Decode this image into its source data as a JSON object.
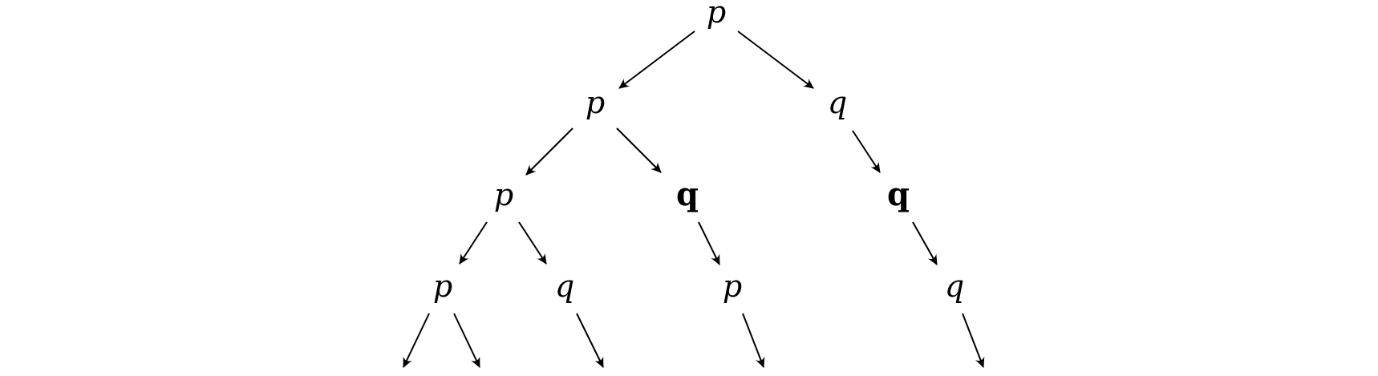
{
  "diagram": {
    "nodes": [
      {
        "id": "n0",
        "label": "p",
        "style": "italic"
      },
      {
        "id": "n1",
        "label": "p",
        "style": "italic"
      },
      {
        "id": "n2",
        "label": "q",
        "style": "italic"
      },
      {
        "id": "n3",
        "label": "p",
        "style": "italic"
      },
      {
        "id": "n4",
        "label": "q",
        "style": "bold"
      },
      {
        "id": "n5",
        "label": "q",
        "style": "bold"
      },
      {
        "id": "n6",
        "label": "p",
        "style": "italic"
      },
      {
        "id": "n7",
        "label": "q",
        "style": "italic"
      },
      {
        "id": "n8",
        "label": "p",
        "style": "italic"
      },
      {
        "id": "n9",
        "label": "q",
        "style": "italic"
      }
    ],
    "edges": [
      {
        "from": "n0",
        "to": "n1"
      },
      {
        "from": "n0",
        "to": "n2"
      },
      {
        "from": "n1",
        "to": "n3"
      },
      {
        "from": "n1",
        "to": "n4"
      },
      {
        "from": "n2",
        "to": "n5"
      },
      {
        "from": "n3",
        "to": "n6"
      },
      {
        "from": "n3",
        "to": "n7"
      },
      {
        "from": "n4",
        "to": "n8"
      },
      {
        "from": "n5",
        "to": "n9"
      },
      {
        "from": "n6",
        "to": "open"
      },
      {
        "from": "n6",
        "to": "open"
      },
      {
        "from": "n7",
        "to": "open"
      },
      {
        "from": "n8",
        "to": "open"
      },
      {
        "from": "n9",
        "to": "open"
      }
    ],
    "colors": {
      "ink": "#000000",
      "background": "#ffffff"
    }
  }
}
